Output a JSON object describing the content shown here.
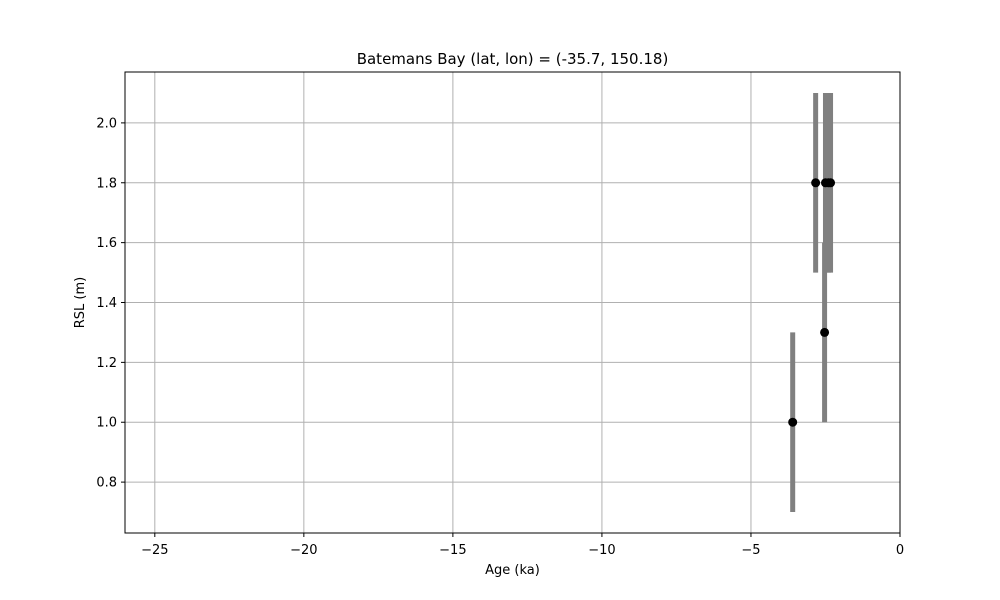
{
  "chart_data": {
    "type": "scatter",
    "title": "Batemans Bay (lat, lon) = (-35.7, 150.18)",
    "xlabel": "Age (ka)",
    "ylabel": "RSL (m)",
    "xlim": [
      -26,
      0
    ],
    "ylim": [
      0.63,
      2.17
    ],
    "xticks": [
      -25,
      -20,
      -15,
      -10,
      -5,
      0
    ],
    "xtick_labels": [
      "−25",
      "−20",
      "−15",
      "−10",
      "−5",
      "0"
    ],
    "yticks": [
      0.8,
      1.0,
      1.2,
      1.4,
      1.6,
      1.8,
      2.0
    ],
    "ytick_labels": [
      "0.8",
      "1.0",
      "1.2",
      "1.4",
      "1.6",
      "1.8",
      "2.0"
    ],
    "grid": true,
    "points": [
      {
        "x": -3.6,
        "y": 1.0,
        "ylow": 0.7,
        "yhigh": 1.3
      },
      {
        "x": -2.53,
        "y": 1.3,
        "ylow": 1.0,
        "yhigh": 1.6
      },
      {
        "x": -2.83,
        "y": 1.8,
        "ylow": 1.5,
        "yhigh": 2.1
      },
      {
        "x": -2.5,
        "y": 1.8,
        "ylow": 1.5,
        "yhigh": 2.1
      },
      {
        "x": -2.4,
        "y": 1.8,
        "ylow": 1.5,
        "yhigh": 2.1
      },
      {
        "x": -2.33,
        "y": 1.8,
        "ylow": 1.5,
        "yhigh": 2.1
      }
    ],
    "colors": {
      "marker": "#000000",
      "errorbar": "#808080",
      "grid": "#b0b0b0",
      "axes": "#000000"
    }
  }
}
